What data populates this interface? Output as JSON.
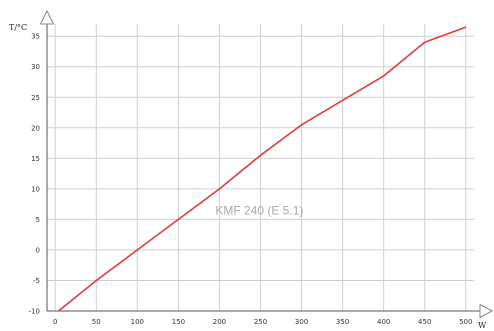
{
  "chart_data": {
    "type": "line",
    "ylabel": "T/°C",
    "xlabel": "W",
    "annotation": "KMF 240 (E 5.1)",
    "xlim": [
      -10,
      510
    ],
    "ylim": [
      -10,
      37
    ],
    "x_ticks": [
      0,
      50,
      100,
      150,
      200,
      250,
      300,
      350,
      400,
      450,
      500
    ],
    "y_ticks": [
      -10,
      -5,
      0,
      5,
      10,
      15,
      20,
      25,
      30,
      35
    ],
    "grid": true,
    "series": [
      {
        "color": "#e23c3c",
        "points": [
          [
            4,
            -10
          ],
          [
            50,
            -5
          ],
          [
            100,
            0
          ],
          [
            150,
            5
          ],
          [
            200,
            10
          ],
          [
            250,
            15.5
          ],
          [
            300,
            20.5
          ],
          [
            350,
            24.5
          ],
          [
            400,
            28.5
          ],
          [
            450,
            34
          ],
          [
            500,
            36.5
          ]
        ]
      }
    ]
  }
}
